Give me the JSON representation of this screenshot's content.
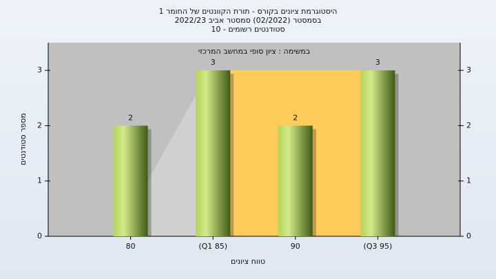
{
  "chart_data": {
    "type": "bar",
    "title": "היסטוגרמת ציונים בקורס - תורת הקוונטים של החומר 1",
    "subtitle": "בסמסטר  (02/2022)  סמסטר אביב 2022/23",
    "note": "סטודנטים רשומים - 10",
    "annotation": "במשימה : ציון סופי במחשב המרכזי",
    "x_label": "טווח ציונים",
    "y_label": "מספר סטודנטים",
    "x": [
      80,
      85,
      90,
      95
    ],
    "values": [
      2,
      3,
      2,
      3
    ],
    "xlim": [
      75,
      100
    ],
    "xticks": [
      80,
      {
        "value": 85,
        "label": "(Q1 85)"
      },
      90,
      {
        "value": 95,
        "label": "(Q3 95)"
      }
    ],
    "ylim": [
      0,
      3.5
    ],
    "yticks": [
      0,
      1,
      2,
      3
    ],
    "color": "#8fb03a"
  }
}
